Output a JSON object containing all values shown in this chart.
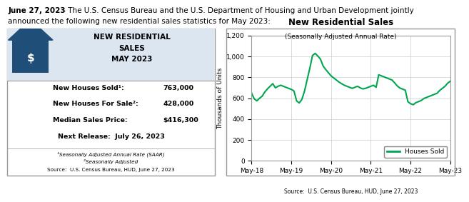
{
  "header_bold": "June 27, 2023",
  "header_rest": " - The U.S. Census Bureau and the U.S. Department of Housing and Urban Development jointly\nannounced the following new residential sales statistics for May 2023:",
  "left_panel": {
    "title_line1": "NEW RESIDENTIAL",
    "title_line2": "SALES",
    "title_line3": "MAY 2023",
    "rows": [
      {
        "label": "New Houses Sold¹:",
        "value": "763,000"
      },
      {
        "label": "New Houses For Sale²:",
        "value": "428,000"
      },
      {
        "label": "Median Sales Price:",
        "value": "$416,300"
      },
      {
        "label": "Next Release:  July 26, 2023",
        "value": ""
      }
    ],
    "footnotes": [
      "¹Seasonally Adjusted Annual Rate (SAAR)",
      "²Seasonally Adjusted",
      "Source:  U.S. Census Bureau, HUD, June 27, 2023"
    ],
    "header_bg": "#dce6f1",
    "border_color": "#999999",
    "house_color": "#1f4e79"
  },
  "right_panel": {
    "title": "New Residential Sales",
    "subtitle": "(Seasonally Adjusted Annual Rate)",
    "ylabel": "Thousands of Units",
    "ylim": [
      0,
      1200
    ],
    "yticks": [
      0,
      200,
      400,
      600,
      800,
      1000,
      1200
    ],
    "xtick_labels": [
      "May-18",
      "May-19",
      "May-20",
      "May-21",
      "May-22",
      "May-23"
    ],
    "line_color": "#00a550",
    "legend_label": "Houses Sold",
    "source": "Source:  U.S. Census Bureau, HUD, June 27, 2023",
    "border_color": "#999999",
    "grid_color": "#cccccc"
  },
  "houses_sold_data": [
    650,
    595,
    575,
    600,
    620,
    660,
    690,
    715,
    740,
    700,
    715,
    725,
    715,
    705,
    695,
    685,
    670,
    575,
    555,
    590,
    670,
    780,
    890,
    1010,
    1030,
    1005,
    975,
    910,
    875,
    845,
    815,
    795,
    775,
    755,
    740,
    725,
    715,
    705,
    695,
    705,
    715,
    700,
    690,
    695,
    705,
    715,
    725,
    705,
    825,
    815,
    805,
    795,
    785,
    775,
    748,
    718,
    698,
    688,
    678,
    568,
    548,
    538,
    558,
    568,
    578,
    598,
    608,
    618,
    628,
    638,
    648,
    675,
    695,
    715,
    745,
    763
  ],
  "background_color": "#ffffff"
}
